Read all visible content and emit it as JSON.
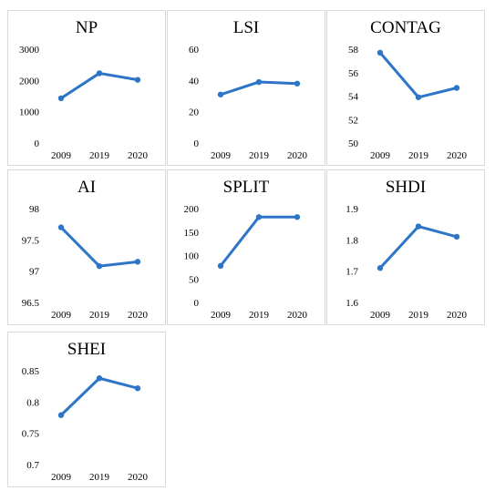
{
  "chart_data": [
    {
      "type": "line",
      "title": "NP",
      "categories": [
        "2009",
        "2019",
        "2020"
      ],
      "values": [
        1430,
        2230,
        2020
      ],
      "ylim": [
        0,
        3000
      ],
      "yticks": [
        "0",
        "1000",
        "2000",
        "3000"
      ],
      "color": "#2e75c8"
    },
    {
      "type": "line",
      "title": "LSI",
      "categories": [
        "2009",
        "2019",
        "2020"
      ],
      "values": [
        31,
        39,
        38
      ],
      "ylim": [
        0,
        60
      ],
      "yticks": [
        "0",
        "20",
        "40",
        "60"
      ],
      "color": "#2e75c8"
    },
    {
      "type": "line",
      "title": "CONTAG",
      "categories": [
        "2009",
        "2019",
        "2020"
      ],
      "values": [
        57.7,
        53.9,
        54.7
      ],
      "ylim": [
        50,
        58
      ],
      "yticks": [
        "50",
        "52",
        "54",
        "56",
        "58"
      ],
      "color": "#2e75c8"
    },
    {
      "type": "line",
      "title": "AI",
      "categories": [
        "2009",
        "2019",
        "2020"
      ],
      "values": [
        97.7,
        97.08,
        97.15
      ],
      "ylim": [
        96.5,
        98
      ],
      "yticks": [
        "96.5",
        "97",
        "97.5",
        "98"
      ],
      "color": "#2e75c8"
    },
    {
      "type": "line",
      "title": "SPLIT",
      "categories": [
        "2009",
        "2019",
        "2020"
      ],
      "values": [
        78,
        182,
        182
      ],
      "ylim": [
        0,
        200
      ],
      "yticks": [
        "0",
        "50",
        "100",
        "150",
        "200"
      ],
      "color": "#2e75c8"
    },
    {
      "type": "line",
      "title": "SHDI",
      "categories": [
        "2009",
        "2019",
        "2020"
      ],
      "values": [
        1.71,
        1.843,
        1.81
      ],
      "ylim": [
        1.6,
        1.9
      ],
      "yticks": [
        "1.6",
        "1.7",
        "1.8",
        "1.9"
      ],
      "color": "#2e75c8"
    },
    {
      "type": "line",
      "title": "SHEI",
      "categories": [
        "2009",
        "2019",
        "2020"
      ],
      "values": [
        0.779,
        0.838,
        0.822
      ],
      "ylim": [
        0.7,
        0.85
      ],
      "yticks": [
        "0.7",
        "0.75",
        "0.8",
        "0.85"
      ],
      "color": "#2e75c8"
    }
  ]
}
